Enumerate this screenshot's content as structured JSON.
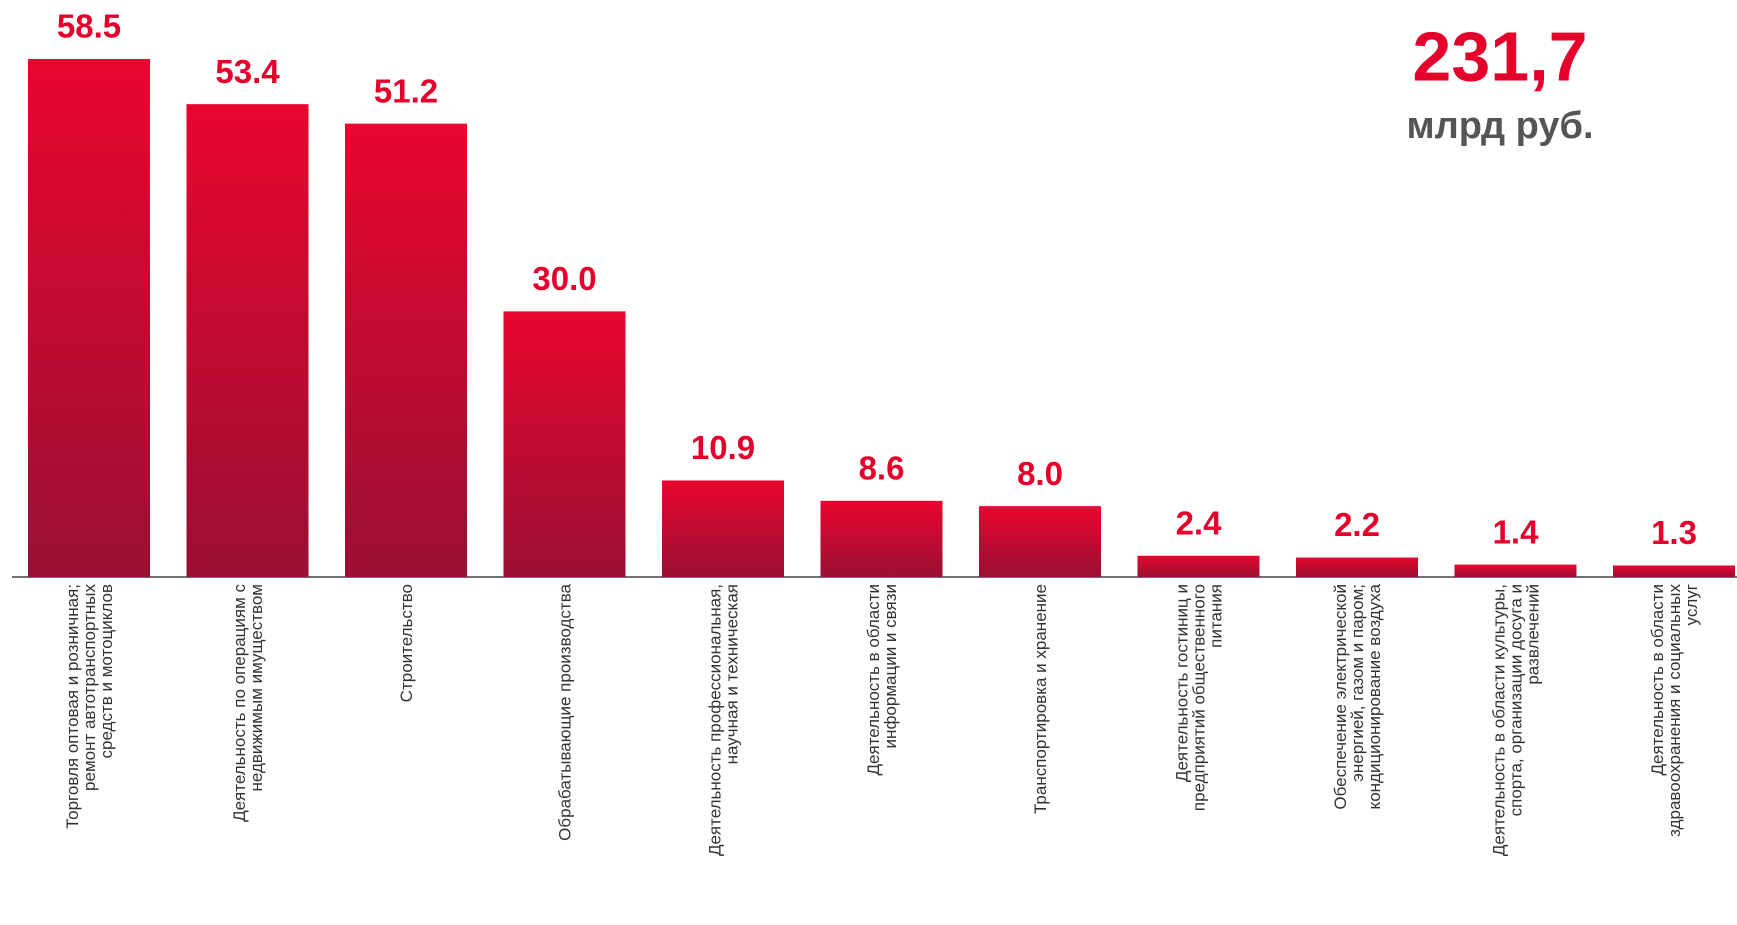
{
  "chart_data": {
    "type": "bar",
    "categories": [
      "Торговля оптовая и розничная;\nремонт автотранспортных\nсредств и мотоциклов",
      "Деятельность по операциям с\nнедвижимым имуществом",
      "Строительство",
      "Обрабатывающие производства",
      "Деятельность профессиональная,\nнаучная и техническая",
      "Деятельность в области\nинформации и связи",
      "Транспортировка и хранение",
      "Деятельность гостиниц и\nпредприятий общественного\nпитания",
      "Обеспечение электрической\nэнергией, газом и паром;\nкондиционирование воздуха",
      "Деятельность в области культуры,\nспорта, организации досуга и\nразвлечений",
      "Деятельность в области\nздравоохранения и социальных\nуслуг"
    ],
    "values": [
      58.5,
      53.4,
      51.2,
      30.0,
      10.9,
      8.6,
      8.0,
      2.4,
      2.2,
      1.4,
      1.3
    ],
    "value_labels": [
      "58.5",
      "53.4",
      "51.2",
      "30.0",
      "10.9",
      "8.6",
      "8.0",
      "2.4",
      "2.2",
      "1.4",
      "1.3"
    ],
    "color": "#e4002b",
    "total": "231,7",
    "total_unit": "млрд руб."
  }
}
